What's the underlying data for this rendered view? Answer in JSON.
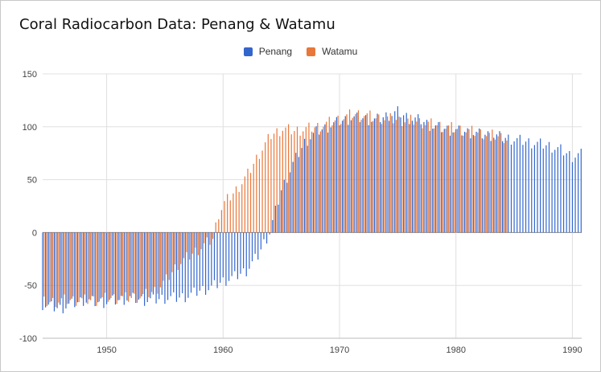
{
  "chart_data": {
    "type": "bar",
    "title": "Coral Radiocarbon Data: Penang & Watamu",
    "xlabel": "",
    "ylabel": "",
    "ylim": [
      -100,
      150
    ],
    "yticks": [
      150,
      100,
      50,
      0,
      -50,
      -100
    ],
    "xlim": [
      1944.5,
      1990.8
    ],
    "xticks": [
      1950,
      1960,
      1970,
      1980,
      1990
    ],
    "grid": true,
    "legend_position": "top-center",
    "series": [
      {
        "name": "Penang",
        "color": "#3366cc",
        "sampling": "roughly four samples per year",
        "x": [
          1944.5,
          1945,
          1946,
          1947,
          1948,
          1949,
          1950,
          1951,
          1952,
          1953,
          1954,
          1955,
          1956,
          1957,
          1958,
          1959,
          1960,
          1961,
          1962,
          1963,
          1963.5,
          1964,
          1964.5,
          1965,
          1966,
          1967,
          1968,
          1969,
          1970,
          1971,
          1972,
          1973,
          1974,
          1975,
          1976,
          1977,
          1978,
          1979,
          1980,
          1981,
          1982,
          1983,
          1984,
          1985,
          1986,
          1987,
          1988,
          1989,
          1990,
          1990.8
        ],
        "y": [
          -68,
          -70,
          -72,
          -68,
          -64,
          -66,
          -66,
          -64,
          -62,
          -64,
          -64,
          -62,
          -62,
          -60,
          -55,
          -52,
          -46,
          -42,
          -36,
          -22,
          -10,
          0,
          20,
          40,
          65,
          85,
          95,
          100,
          105,
          108,
          108,
          106,
          110,
          114,
          108,
          106,
          100,
          98,
          96,
          95,
          93,
          92,
          90,
          88,
          86,
          84,
          82,
          78,
          72,
          74
        ]
      },
      {
        "name": "Watamu",
        "color": "#e8773a",
        "sampling": "roughly four samples per year",
        "x": [
          1944.5,
          1945,
          1946,
          1947,
          1948,
          1949,
          1950,
          1951,
          1952,
          1953,
          1954,
          1955,
          1956,
          1957,
          1958,
          1959,
          1959.5,
          1960,
          1961,
          1962,
          1963,
          1964,
          1965,
          1966,
          1967,
          1968,
          1969,
          1970,
          1971,
          1972,
          1973,
          1974,
          1975,
          1976,
          1977,
          1978,
          1979,
          1980,
          1981,
          1982,
          1983,
          1984,
          1984.4
        ],
        "y": [
          -66,
          -66,
          -64,
          -64,
          -64,
          -64,
          -62,
          -62,
          -62,
          -60,
          -55,
          -45,
          -30,
          -22,
          -14,
          -6,
          18,
          28,
          40,
          55,
          75,
          92,
          98,
          96,
          98,
          100,
          104,
          108,
          112,
          112,
          108,
          108,
          106,
          106,
          104,
          102,
          100,
          98,
          96,
          94,
          92,
          90,
          88
        ]
      }
    ]
  }
}
